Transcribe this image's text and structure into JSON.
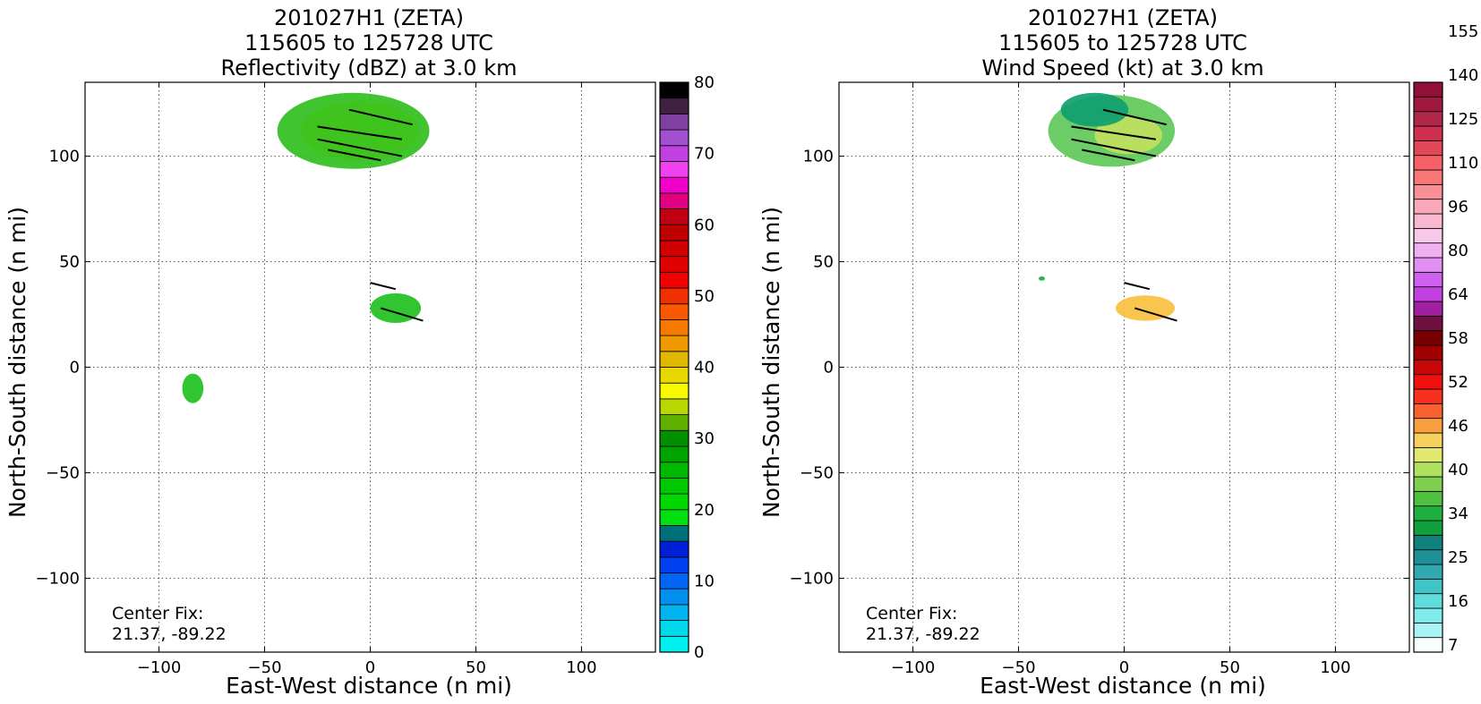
{
  "chart_data": [
    {
      "type": "heatmap",
      "title_lines": [
        "201027H1 (ZETA)",
        "115605 to 125728 UTC",
        "Reflectivity (dBZ) at 3.0 km"
      ],
      "xlabel": "East-West distance (n mi)",
      "ylabel": "North-South distance (n mi)",
      "xlim": [
        -135,
        135
      ],
      "ylim": [
        -135,
        135
      ],
      "xticks": [
        "−100",
        "−50",
        "0",
        "50",
        "100"
      ],
      "yticks": [
        "−100",
        "−50",
        "0",
        "50",
        "100"
      ],
      "xtick_values": [
        -100,
        -50,
        0,
        50,
        100
      ],
      "ytick_values": [
        -100,
        -50,
        0,
        50,
        100
      ],
      "grid": true,
      "center_fix_label": "Center Fix:",
      "center_fix_value": "21.37, -89.22",
      "colorbar": {
        "min": 0,
        "max": 80,
        "tick_labels": [
          "0",
          "10",
          "20",
          "30",
          "40",
          "50",
          "60",
          "70",
          "80"
        ],
        "tick_values": [
          0,
          10,
          20,
          30,
          40,
          50,
          60,
          70,
          80
        ],
        "colors": [
          "#00f0f0",
          "#00d8ec",
          "#00b4f0",
          "#0090f0",
          "#0064f4",
          "#0040f0",
          "#0020d8",
          "#007078",
          "#00e010",
          "#00d800",
          "#00c800",
          "#00b800",
          "#00a400",
          "#009000",
          "#60b000",
          "#b8d800",
          "#f8f800",
          "#e8d800",
          "#e0b800",
          "#f09800",
          "#f87800",
          "#f85800",
          "#f03000",
          "#f00000",
          "#e00000",
          "#d00000",
          "#c00000",
          "#c00010",
          "#e00080",
          "#f000c8",
          "#f040f0",
          "#c040e0",
          "#a050d0",
          "#8040a0",
          "#402040",
          "#000000"
        ]
      },
      "echo_regions": [
        {
          "name": "northern-band",
          "cx": -5,
          "cy": 112,
          "rx": 28,
          "ry": 14,
          "color": "#f0f000"
        },
        {
          "name": "northern-band-outer",
          "cx": -8,
          "cy": 112,
          "rx": 36,
          "ry": 18,
          "color": "#30c020"
        },
        {
          "name": "southern-cell",
          "cx": 12,
          "cy": 28,
          "rx": 12,
          "ry": 7,
          "color": "#20c020"
        },
        {
          "name": "sw-cell",
          "cx": -84,
          "cy": -10,
          "rx": 5,
          "ry": 7,
          "color": "#20c020"
        }
      ]
    },
    {
      "type": "heatmap",
      "title_lines": [
        "201027H1 (ZETA)",
        "115605 to 125728 UTC",
        "Wind Speed (kt) at 3.0 km"
      ],
      "xlabel": "East-West distance (n mi)",
      "ylabel": "North-South distance (n mi)",
      "xlim": [
        -135,
        135
      ],
      "ylim": [
        -135,
        135
      ],
      "xticks": [
        "−100",
        "−50",
        "0",
        "50",
        "100"
      ],
      "yticks": [
        "−100",
        "−50",
        "0",
        "50",
        "100"
      ],
      "xtick_values": [
        -100,
        -50,
        0,
        50,
        100
      ],
      "ytick_values": [
        -100,
        -50,
        0,
        50,
        100
      ],
      "grid": true,
      "center_fix_label": "Center Fix:",
      "center_fix_value": "21.37, -89.22",
      "colorbar": {
        "tick_labels": [
          "7",
          "16",
          "25",
          "34",
          "40",
          "46",
          "52",
          "58",
          "64",
          "80",
          "96",
          "110",
          "125",
          "140",
          "155"
        ],
        "tick_bins": [
          0,
          3,
          6,
          9,
          12,
          15,
          18,
          21,
          24,
          27,
          30,
          33,
          36,
          39,
          42
        ],
        "colors": [
          "#f8ffff",
          "#a8f4f4",
          "#80ecec",
          "#60dcdc",
          "#40c4c8",
          "#30aab0",
          "#209098",
          "#10807c",
          "#10a040",
          "#20b040",
          "#50c040",
          "#80d050",
          "#b0e060",
          "#e0e870",
          "#f8d060",
          "#f8a040",
          "#f86030",
          "#f83020",
          "#f01010",
          "#c80808",
          "#a00000",
          "#780000",
          "#701040",
          "#a020a0",
          "#c040e0",
          "#d060f0",
          "#e090f0",
          "#f0b0f0",
          "#f8c8e8",
          "#f8b8d0",
          "#f8a8b8",
          "#f89098",
          "#f87878",
          "#f86068",
          "#e04858",
          "#d03050",
          "#b02848",
          "#a01840",
          "#901038"
        ]
      },
      "echo_regions": [
        {
          "name": "northern-band",
          "cx": -6,
          "cy": 112,
          "rx": 30,
          "ry": 17,
          "color": "#60c858"
        },
        {
          "name": "northern-core",
          "cx": 2,
          "cy": 110,
          "rx": 16,
          "ry": 9,
          "color": "#c0e060"
        },
        {
          "name": "northern-top",
          "cx": -14,
          "cy": 122,
          "rx": 16,
          "ry": 8,
          "color": "#10a070"
        },
        {
          "name": "southern-cell",
          "cx": 10,
          "cy": 28,
          "rx": 14,
          "ry": 6,
          "color": "#f8c040"
        },
        {
          "name": "west-speck",
          "cx": -39,
          "cy": 42,
          "rx": 1.5,
          "ry": 1,
          "color": "#20b040"
        }
      ]
    }
  ]
}
